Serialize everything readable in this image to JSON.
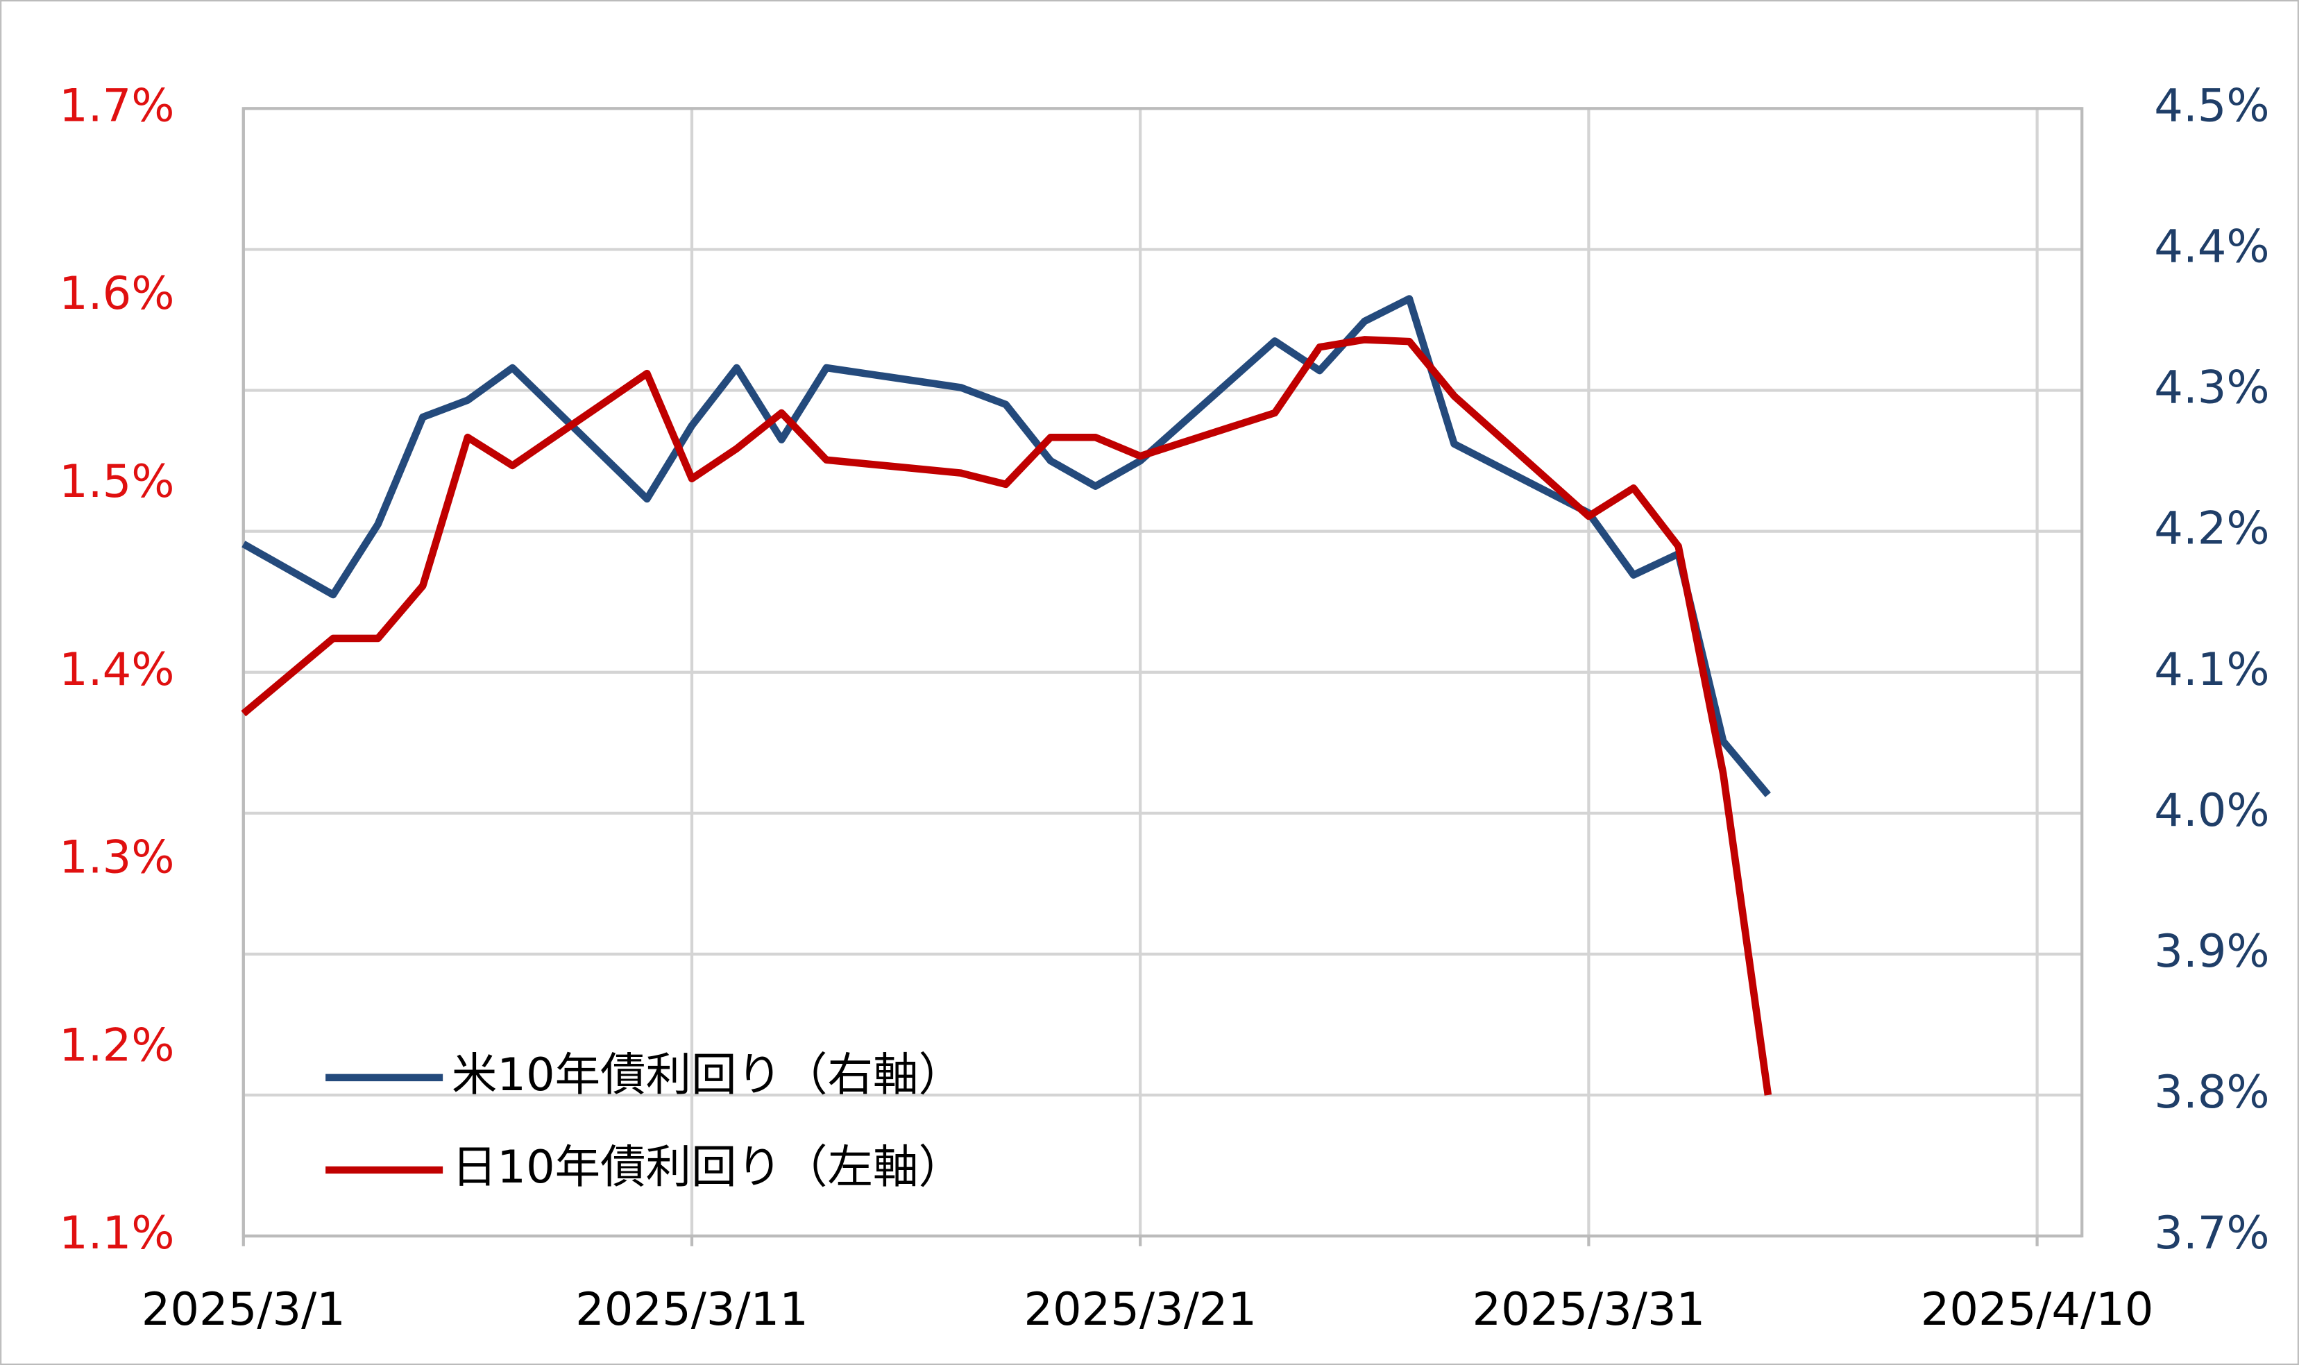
{
  "chart_data": {
    "type": "line",
    "x": [
      "2025/3/1",
      "2025/3/3",
      "2025/3/4",
      "2025/3/5",
      "2025/3/6",
      "2025/3/7",
      "2025/3/10",
      "2025/3/11",
      "2025/3/12",
      "2025/3/13",
      "2025/3/14",
      "2025/3/17",
      "2025/3/18",
      "2025/3/19",
      "2025/3/20",
      "2025/3/21",
      "2025/3/24",
      "2025/3/25",
      "2025/3/26",
      "2025/3/27",
      "2025/3/28",
      "2025/3/31",
      "2025/4/1",
      "2025/4/2",
      "2025/4/3",
      "2025/4/4"
    ],
    "series": [
      {
        "name": "米10年債利回り（右軸）",
        "color": "#244a7c",
        "axis": "y2",
        "values": [
          4.191,
          4.155,
          4.205,
          4.281,
          4.293,
          4.316,
          4.223,
          4.275,
          4.316,
          4.265,
          4.316,
          4.302,
          4.29,
          4.25,
          4.232,
          4.25,
          4.335,
          4.314,
          4.349,
          4.365,
          4.262,
          4.213,
          4.169,
          4.184,
          4.051,
          4.013
        ]
      },
      {
        "name": "日10年債利回り（左軸）",
        "color": "#c00000",
        "values": [
          1.378,
          1.418,
          1.418,
          1.446,
          1.525,
          1.51,
          1.559,
          1.503,
          1.519,
          1.538,
          1.513,
          1.506,
          1.5,
          1.525,
          1.525,
          1.515,
          1.538,
          1.573,
          1.577,
          1.576,
          1.547,
          1.483,
          1.498,
          1.467,
          1.346,
          1.175
        ]
      }
    ],
    "xlim": [
      "2025/3/1",
      "2025/4/11"
    ],
    "xticks": [
      "2025/3/1",
      "2025/3/11",
      "2025/3/21",
      "2025/3/31",
      "2025/4/10"
    ],
    "ylim": [
      1.1,
      1.7
    ],
    "yticks": [
      {
        "value": 1.1,
        "label": "1.1%"
      },
      {
        "value": 1.2,
        "label": "1.2%"
      },
      {
        "value": 1.3,
        "label": "1.3%"
      },
      {
        "value": 1.4,
        "label": "1.4%"
      },
      {
        "value": 1.5,
        "label": "1.5%"
      },
      {
        "value": 1.6,
        "label": "1.6%"
      },
      {
        "value": 1.7,
        "label": "1.7%"
      }
    ],
    "y2lim": [
      3.7,
      4.5
    ],
    "y2ticks": [
      {
        "value": 3.7,
        "label": "3.7%"
      },
      {
        "value": 3.8,
        "label": "3.8%"
      },
      {
        "value": 3.9,
        "label": "3.9%"
      },
      {
        "value": 4.0,
        "label": "4.0%"
      },
      {
        "value": 4.1,
        "label": "4.1%"
      },
      {
        "value": 4.2,
        "label": "4.2%"
      },
      {
        "value": 4.3,
        "label": "4.3%"
      },
      {
        "value": 4.4,
        "label": "4.4%"
      },
      {
        "value": 4.5,
        "label": "4.5%"
      }
    ],
    "grid": true,
    "legend": "lower left",
    "ytick_color": "#e01010",
    "y2tick_color": "#1f3e68"
  }
}
